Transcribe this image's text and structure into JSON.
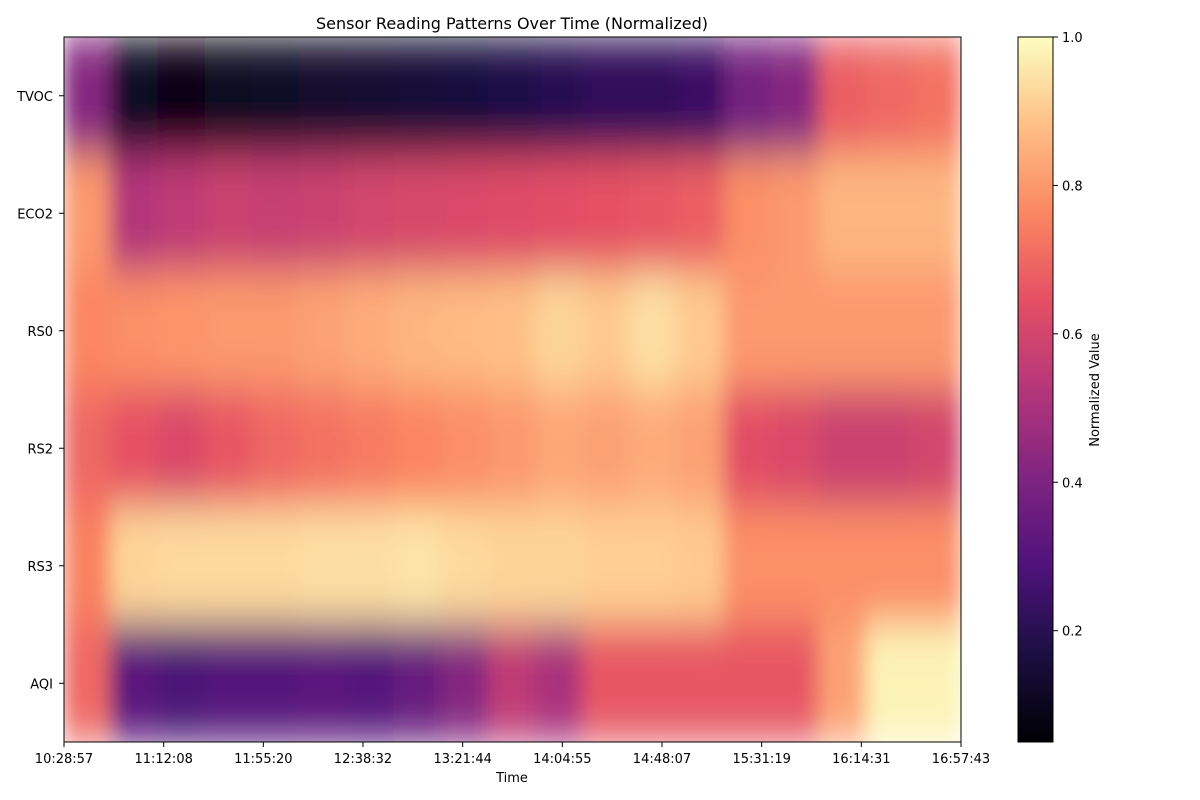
{
  "chart_data": {
    "type": "heatmap",
    "title": "Sensor Reading Patterns Over Time (Normalized)",
    "xlabel": "Time",
    "ylabel": "",
    "colorbar_label": "Normalized Value",
    "colormap": "magma",
    "value_range": [
      0.05,
      1.0
    ],
    "colorbar_ticks": [
      "0.2",
      "0.4",
      "0.6",
      "0.8",
      "1.0"
    ],
    "x_ticks": [
      "10:28:57",
      "11:12:08",
      "11:55:20",
      "12:38:32",
      "13:21:44",
      "14:04:55",
      "14:48:07",
      "15:31:19",
      "16:14:31",
      "16:57:43"
    ],
    "rows": [
      "TVOC",
      "ECO2",
      "RS0",
      "RS2",
      "RS3",
      "AQI"
    ],
    "column_times": [
      "10:28:57",
      "10:50:33",
      "11:12:08",
      "11:33:44",
      "11:55:20",
      "12:16:56",
      "12:38:32",
      "13:00:08",
      "13:21:44",
      "13:43:20",
      "14:04:55",
      "14:26:31",
      "14:48:07",
      "15:09:43",
      "15:31:19",
      "15:52:55",
      "16:14:31",
      "16:36:07",
      "16:57:43"
    ],
    "values": [
      [
        0.42,
        0.12,
        0.08,
        0.11,
        0.12,
        0.13,
        0.14,
        0.15,
        0.16,
        0.18,
        0.2,
        0.22,
        0.22,
        0.24,
        0.38,
        0.42,
        0.68,
        0.7,
        0.72
      ],
      [
        0.8,
        0.52,
        0.55,
        0.58,
        0.57,
        0.58,
        0.6,
        0.61,
        0.62,
        0.63,
        0.64,
        0.65,
        0.66,
        0.68,
        0.78,
        0.8,
        0.86,
        0.86,
        0.86
      ],
      [
        0.76,
        0.78,
        0.79,
        0.8,
        0.8,
        0.82,
        0.84,
        0.86,
        0.87,
        0.88,
        0.92,
        0.9,
        0.94,
        0.9,
        0.8,
        0.8,
        0.8,
        0.8,
        0.8
      ],
      [
        0.7,
        0.65,
        0.62,
        0.66,
        0.7,
        0.72,
        0.74,
        0.76,
        0.78,
        0.8,
        0.83,
        0.82,
        0.84,
        0.82,
        0.64,
        0.62,
        0.58,
        0.58,
        0.6
      ],
      [
        0.75,
        0.92,
        0.93,
        0.93,
        0.93,
        0.94,
        0.94,
        0.95,
        0.93,
        0.92,
        0.92,
        0.91,
        0.91,
        0.9,
        0.78,
        0.78,
        0.78,
        0.78,
        0.78
      ],
      [
        0.7,
        0.32,
        0.28,
        0.3,
        0.3,
        0.32,
        0.3,
        0.35,
        0.42,
        0.55,
        0.5,
        0.66,
        0.66,
        0.66,
        0.66,
        0.66,
        0.82,
        0.98,
        0.98
      ]
    ]
  }
}
